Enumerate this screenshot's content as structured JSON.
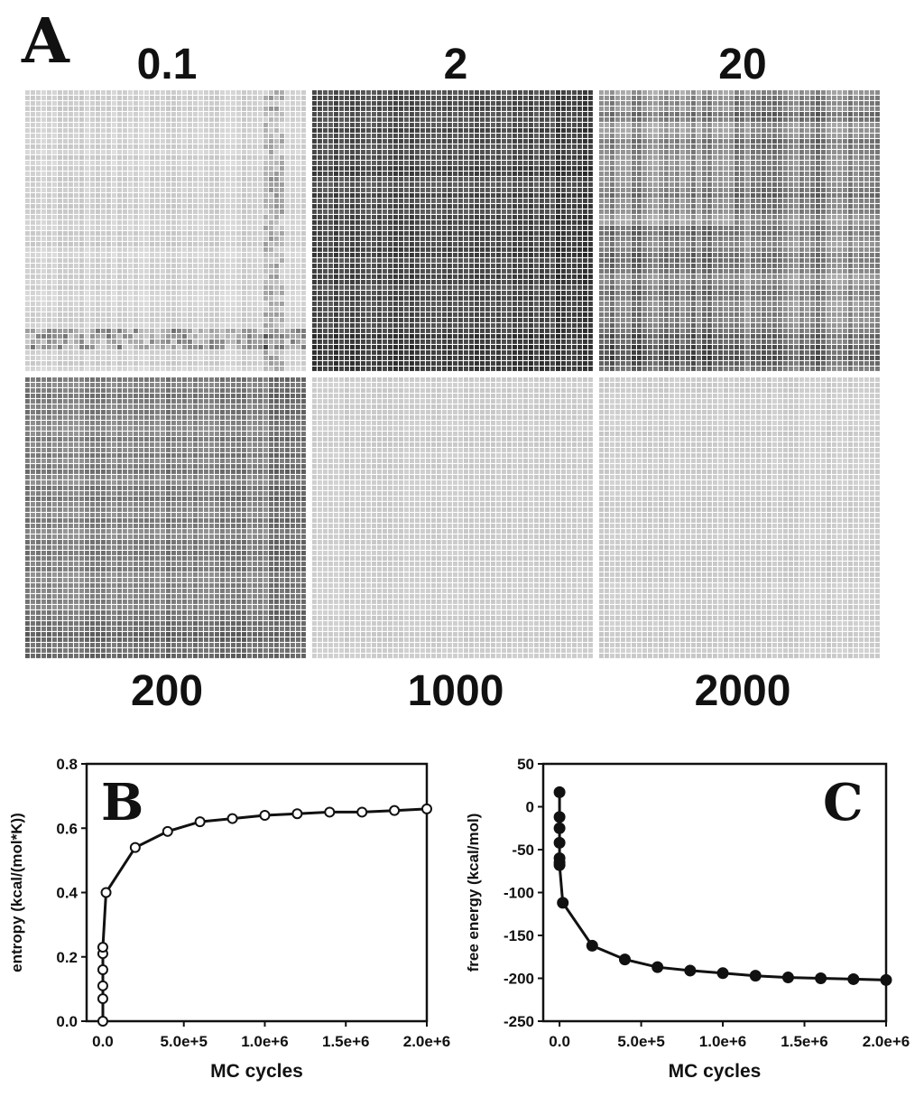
{
  "panel_a": {
    "letter": "A",
    "matrices": [
      {
        "label": "0.1",
        "tone": 0.82,
        "var": 0.06,
        "name": "matrix-0-1"
      },
      {
        "label": "2",
        "tone": 0.3,
        "var": 0.1,
        "name": "matrix-2"
      },
      {
        "label": "20",
        "tone": 0.55,
        "var": 0.18,
        "name": "matrix-20"
      },
      {
        "label": "200",
        "tone": 0.5,
        "var": 0.1,
        "name": "matrix-200"
      },
      {
        "label": "1000",
        "tone": 0.8,
        "var": 0.03,
        "name": "matrix-1000"
      },
      {
        "label": "2000",
        "tone": 0.8,
        "var": 0.03,
        "name": "matrix-2000"
      }
    ]
  },
  "chart_data": [
    {
      "type": "line",
      "panel_letter": "B",
      "xlabel": "MC cycles",
      "ylabel": "entropy (kcal/(mol*K))",
      "xlim": [
        -100000,
        2000000
      ],
      "ylim": [
        0,
        0.8
      ],
      "xticks": [
        0,
        500000,
        1000000,
        1500000,
        2000000
      ],
      "xtick_labels": [
        "0.0",
        "5.0e+5",
        "1.0e+6",
        "1.5e+6",
        "2.0e+6"
      ],
      "yticks": [
        0,
        0.2,
        0.4,
        0.6,
        0.8
      ],
      "ytick_labels": [
        "0.0",
        "0.2",
        "0.4",
        "0.6",
        "0.8"
      ],
      "marker": "open-circle",
      "x": [
        0,
        0,
        0,
        0,
        0,
        0,
        20000,
        200000,
        400000,
        600000,
        800000,
        1000000,
        1200000,
        1400000,
        1600000,
        1800000,
        2000000
      ],
      "y": [
        0.0,
        0.07,
        0.11,
        0.16,
        0.21,
        0.23,
        0.4,
        0.54,
        0.59,
        0.62,
        0.63,
        0.64,
        0.645,
        0.65,
        0.65,
        0.655,
        0.66
      ]
    },
    {
      "type": "line",
      "panel_letter": "C",
      "xlabel": "MC cycles",
      "ylabel": "free energy (kcal/mol)",
      "xlim": [
        -100000,
        2000000
      ],
      "ylim": [
        -250,
        50
      ],
      "xticks": [
        0,
        500000,
        1000000,
        1500000,
        2000000
      ],
      "xtick_labels": [
        "0.0",
        "5.0e+5",
        "1.0e+6",
        "1.5e+6",
        "2.0e+6"
      ],
      "yticks": [
        -250,
        -200,
        -150,
        -100,
        -50,
        0,
        50
      ],
      "ytick_labels": [
        "-250",
        "-200",
        "-150",
        "-100",
        "-50",
        "0",
        "50"
      ],
      "marker": "filled-circle",
      "x": [
        0,
        0,
        0,
        0,
        0,
        0,
        0,
        20000,
        200000,
        400000,
        600000,
        800000,
        1000000,
        1200000,
        1400000,
        1600000,
        1800000,
        2000000
      ],
      "y": [
        17,
        -12,
        -25,
        -42,
        -60,
        -65,
        -68,
        -112,
        -162,
        -178,
        -187,
        -191,
        -194,
        -197,
        -199,
        -200,
        -201,
        -202
      ]
    }
  ]
}
